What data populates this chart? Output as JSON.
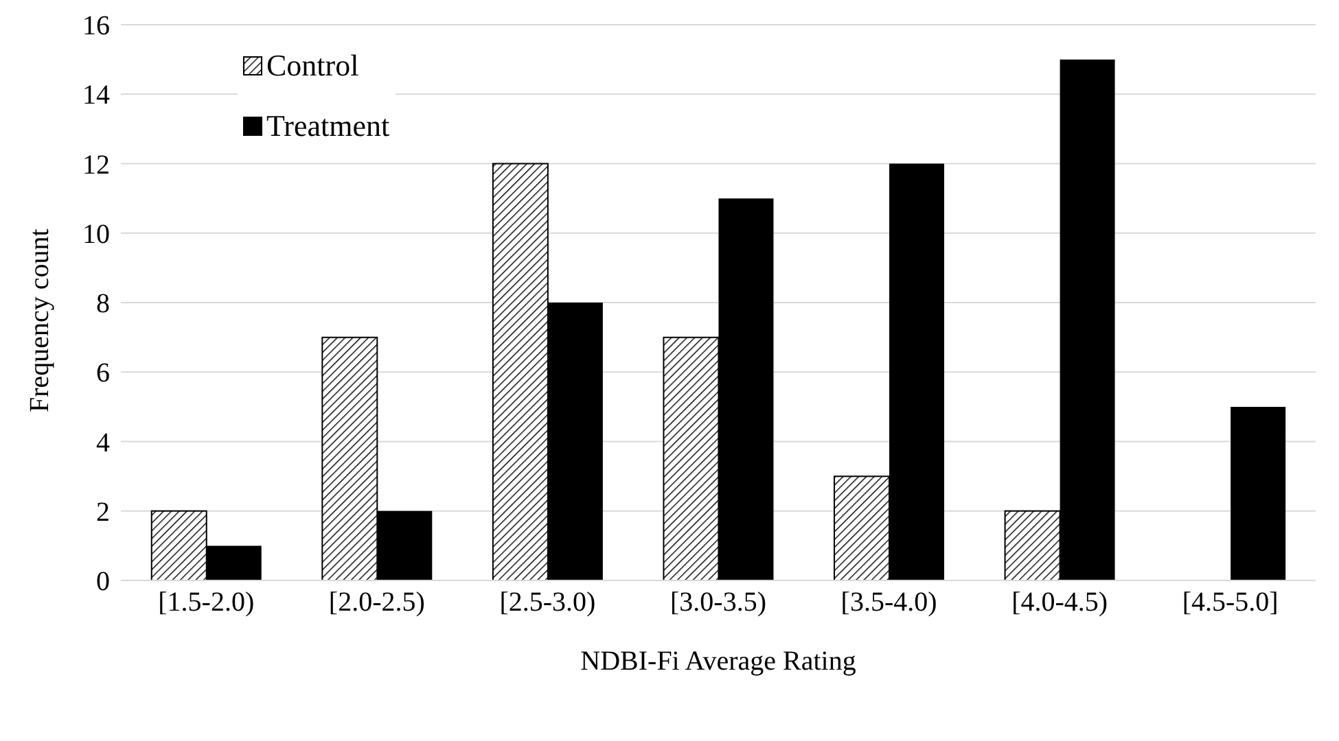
{
  "chart_data": {
    "type": "bar",
    "xlabel": "NDBI-Fi Average Rating",
    "ylabel": "Frequency count",
    "categories": [
      "[1.5-2.0)",
      "[2.0-2.5)",
      "[2.5-3.0)",
      "[3.0-3.5)",
      "[3.5-4.0)",
      "[4.0-4.5)",
      "[4.5-5.0]"
    ],
    "series": [
      {
        "name": "Control",
        "color": "#000000",
        "values": [
          2,
          7,
          12,
          7,
          3,
          2,
          0
        ]
      },
      {
        "name": "Treatment",
        "color": "#000000",
        "values": [
          1,
          2,
          8,
          11,
          12,
          15,
          5
        ]
      }
    ],
    "ylim": [
      0,
      16
    ],
    "yticks": [
      0,
      2,
      4,
      6,
      8,
      10,
      12,
      14,
      16
    ],
    "grid": "y",
    "legend": "top left"
  }
}
